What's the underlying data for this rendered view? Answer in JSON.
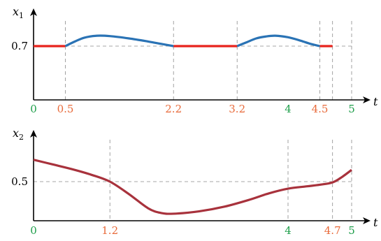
{
  "chart_data": [
    {
      "type": "line",
      "ylabel": "x",
      "ylabel_sub": "1",
      "xlabel": "t",
      "xlim": [
        0,
        5.2
      ],
      "ylim": [
        0,
        1.0
      ],
      "y_ticks": [
        {
          "value": 0.7,
          "label": "0.7"
        }
      ],
      "reference_y": 0.7,
      "x_ticks": [
        {
          "value": 0,
          "label": "0",
          "color": "#1e9e4a"
        },
        {
          "value": 0.5,
          "label": "0.5",
          "color": "#e86a3a"
        },
        {
          "value": 2.2,
          "label": "2.2",
          "color": "#e86a3a"
        },
        {
          "value": 3.2,
          "label": "3.2",
          "color": "#e86a3a"
        },
        {
          "value": 4,
          "label": "4",
          "color": "#1e9e4a"
        },
        {
          "value": 4.5,
          "label": "4.5",
          "color": "#e86a3a"
        },
        {
          "value": 5,
          "label": "5",
          "color": "#1e9e4a"
        }
      ],
      "vertical_guides": [
        0.5,
        2.2,
        3.2,
        4.5,
        4.7,
        5
      ],
      "series": [
        {
          "color": "#e8231c",
          "segments": [
            [
              [
                0,
                0.7
              ],
              [
                0.5,
                0.7
              ]
            ],
            [
              [
                2.2,
                0.7
              ],
              [
                3.2,
                0.7
              ]
            ],
            [
              [
                4.5,
                0.7
              ],
              [
                4.7,
                0.7
              ]
            ]
          ]
        },
        {
          "color": "#2a73b5",
          "segments": [
            [
              [
                0.5,
                0.7
              ],
              [
                0.65,
                0.76
              ],
              [
                0.8,
                0.81
              ],
              [
                1.0,
                0.835
              ],
              [
                1.2,
                0.83
              ],
              [
                1.5,
                0.8
              ],
              [
                1.8,
                0.76
              ],
              [
                2.0,
                0.73
              ],
              [
                2.2,
                0.7
              ]
            ],
            [
              [
                3.2,
                0.7
              ],
              [
                3.35,
                0.75
              ],
              [
                3.5,
                0.8
              ],
              [
                3.65,
                0.825
              ],
              [
                3.8,
                0.835
              ],
              [
                4.0,
                0.815
              ],
              [
                4.2,
                0.77
              ],
              [
                4.35,
                0.73
              ],
              [
                4.5,
                0.7
              ]
            ]
          ]
        }
      ]
    },
    {
      "type": "line",
      "ylabel": "x",
      "ylabel_sub": "2",
      "xlabel": "t",
      "xlim": [
        0,
        5.2
      ],
      "ylim": [
        0,
        1.0
      ],
      "y_ticks": [
        {
          "value": 0.5,
          "label": "0.5"
        }
      ],
      "reference_y": 0.5,
      "x_ticks": [
        {
          "value": 0,
          "label": "0",
          "color": "#1e9e4a"
        },
        {
          "value": 1.2,
          "label": "1.2",
          "color": "#e86a3a"
        },
        {
          "value": 4,
          "label": "4",
          "color": "#1e9e4a"
        },
        {
          "value": 4.7,
          "label": "4.7",
          "color": "#e86a3a"
        },
        {
          "value": 5,
          "label": "5",
          "color": "#1e9e4a"
        }
      ],
      "vertical_guides": [
        1.2,
        4,
        4.7,
        5
      ],
      "series": [
        {
          "color": "#a8323c",
          "segments": [
            [
              [
                0,
                0.78
              ],
              [
                0.3,
                0.72
              ],
              [
                0.6,
                0.66
              ],
              [
                0.9,
                0.59
              ],
              [
                1.2,
                0.5
              ],
              [
                1.5,
                0.34
              ],
              [
                1.8,
                0.16
              ],
              [
                2.0,
                0.1
              ],
              [
                2.2,
                0.09
              ],
              [
                2.6,
                0.12
              ],
              [
                3.0,
                0.18
              ],
              [
                3.4,
                0.27
              ],
              [
                3.7,
                0.35
              ],
              [
                4.0,
                0.41
              ],
              [
                4.3,
                0.44
              ],
              [
                4.5,
                0.46
              ],
              [
                4.7,
                0.49
              ],
              [
                4.85,
                0.56
              ],
              [
                5.0,
                0.65
              ]
            ]
          ]
        }
      ]
    }
  ]
}
